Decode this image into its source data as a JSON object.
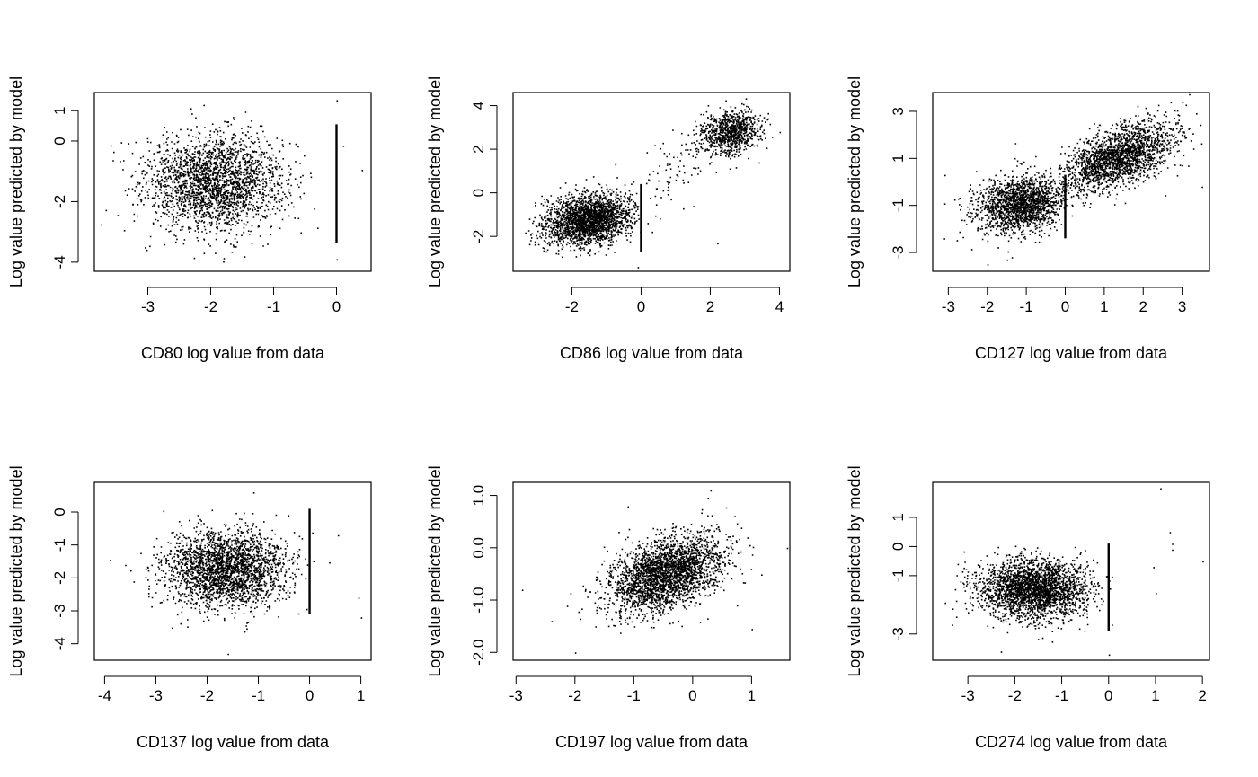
{
  "chart_data": [
    {
      "type": "scatter",
      "xlabel": "CD80 log value from data",
      "ylabel": "Log value predicted by model",
      "xlim": [
        -3.85,
        0.55
      ],
      "ylim": [
        -4.3,
        1.6
      ],
      "xticks": [
        -3,
        -2,
        -1,
        0
      ],
      "yticks": [
        -4,
        -2,
        0,
        1
      ],
      "grid": false,
      "clusters": [
        {
          "cx": -1.95,
          "cy": -1.35,
          "sx": 0.55,
          "sy": 0.78,
          "n": 2400,
          "rho": 0.0,
          "range_x": [
            -3.7,
            -0.3
          ]
        }
      ],
      "vertical_line": {
        "x": 0.0,
        "y_from": -3.35,
        "y_to": 0.55
      },
      "outlier_points": [
        [
          0.0,
          1.35
        ],
        [
          0.0,
          -3.9
        ],
        [
          0.1,
          -0.15
        ],
        [
          0.4,
          -0.95
        ],
        [
          -3.55,
          -0.35
        ],
        [
          -3.75,
          -2.75
        ]
      ]
    },
    {
      "type": "scatter",
      "xlabel": "CD86 log value from data",
      "ylabel": "Log value predicted by model",
      "xlim": [
        -3.7,
        4.3
      ],
      "ylim": [
        -3.6,
        4.6
      ],
      "xticks": [
        -2,
        0,
        2,
        4
      ],
      "yticks": [
        -2,
        0,
        2,
        4
      ],
      "grid": false,
      "clusters": [
        {
          "cx": -1.55,
          "cy": -1.2,
          "sx": 0.62,
          "sy": 0.58,
          "n": 2300,
          "rho": 0.2,
          "range_x": [
            -3.4,
            0.0
          ]
        },
        {
          "cx": 2.55,
          "cy": 2.8,
          "sx": 0.42,
          "sy": 0.52,
          "n": 900,
          "rho": 0.15,
          "range_x": [
            1.0,
            3.8
          ]
        },
        {
          "cx": 0.8,
          "cy": 1.0,
          "sx": 0.6,
          "sy": 1.0,
          "n": 90,
          "rho": 0.5,
          "range_x": [
            0.0,
            2.0
          ]
        }
      ],
      "vertical_line": {
        "x": 0.0,
        "y_from": -2.7,
        "y_to": 0.4
      },
      "outlier_points": [
        [
          2.2,
          -2.3
        ],
        [
          0.9,
          2.9
        ],
        [
          -0.1,
          -3.4
        ],
        [
          4.0,
          2.8
        ],
        [
          1.5,
          -0.6
        ]
      ]
    },
    {
      "type": "scatter",
      "xlabel": "CD127 log value from data",
      "ylabel": "Log value predicted by model",
      "xlim": [
        -3.4,
        3.7
      ],
      "ylim": [
        -3.8,
        3.8
      ],
      "xticks": [
        -3,
        -2,
        -1,
        0,
        1,
        2,
        3
      ],
      "yticks": [
        -3,
        -1,
        1,
        3
      ],
      "grid": false,
      "clusters": [
        {
          "cx": -1.15,
          "cy": -0.95,
          "sx": 0.58,
          "sy": 0.6,
          "n": 1800,
          "rho": 0.15,
          "range_x": [
            -3.2,
            0.0
          ]
        },
        {
          "cx": 1.3,
          "cy": 1.05,
          "sx": 0.72,
          "sy": 0.75,
          "n": 2100,
          "rho": 0.55,
          "range_x": [
            -0.2,
            3.5
          ]
        }
      ],
      "vertical_line": {
        "x": 0.0,
        "y_from": -2.4,
        "y_to": 0.3
      },
      "outlier_points": [
        [
          2.7,
          3.4
        ],
        [
          3.0,
          3.4
        ],
        [
          -3.1,
          0.3
        ],
        [
          3.5,
          -0.2
        ],
        [
          -1.5,
          -3.3
        ],
        [
          -2.0,
          -3.5
        ]
      ]
    },
    {
      "type": "scatter",
      "xlabel": "CD137 log value from data",
      "ylabel": "Log value predicted by model",
      "xlim": [
        -4.2,
        1.2
      ],
      "ylim": [
        -4.5,
        0.9
      ],
      "xticks": [
        -4,
        -3,
        -2,
        -1,
        0,
        1
      ],
      "yticks": [
        -4,
        -3,
        -2,
        -1,
        0
      ],
      "grid": false,
      "clusters": [
        {
          "cx": -1.65,
          "cy": -1.7,
          "sx": 0.58,
          "sy": 0.58,
          "n": 2500,
          "rho": 0.0,
          "range_x": [
            -3.5,
            0.55
          ]
        }
      ],
      "vertical_line": {
        "x": 0.0,
        "y_from": -3.1,
        "y_to": 0.1
      },
      "outlier_points": [
        [
          -3.9,
          -1.45
        ],
        [
          -3.6,
          -1.6
        ],
        [
          1.0,
          -3.2
        ],
        [
          0.95,
          -2.6
        ],
        [
          0.55,
          -0.7
        ],
        [
          -1.1,
          0.6
        ],
        [
          -1.6,
          -4.3
        ]
      ]
    },
    {
      "type": "scatter",
      "xlabel": "CD197 log value from data",
      "ylabel": "Log value predicted by model",
      "xlim": [
        -3.05,
        1.65
      ],
      "ylim": [
        -2.15,
        1.25
      ],
      "xticks": [
        -3,
        -2,
        -1,
        0,
        1
      ],
      "yticks": [
        -2.0,
        -1.0,
        0.0,
        1.0
      ],
      "ytick_labels": [
        "-2.0",
        "-1.0",
        "0.0",
        "1.0"
      ],
      "grid": false,
      "clusters": [
        {
          "cx": -0.45,
          "cy": -0.48,
          "sx": 0.48,
          "sy": 0.36,
          "n": 2700,
          "rho": 0.4,
          "range_x": [
            -2.6,
            1.4
          ]
        }
      ],
      "vertical_line": null,
      "outlier_points": [
        [
          -2.0,
          -2.0
        ],
        [
          1.6,
          0.0
        ],
        [
          1.0,
          -1.55
        ],
        [
          -2.4,
          -1.4
        ],
        [
          0.3,
          1.1
        ],
        [
          -2.9,
          -0.8
        ]
      ]
    },
    {
      "type": "scatter",
      "xlabel": "CD274 log value from data",
      "ylabel": "Log value predicted by model",
      "xlim": [
        -3.75,
        2.15
      ],
      "ylim": [
        -3.9,
        2.2
      ],
      "xticks": [
        -3,
        -2,
        -1,
        0,
        1,
        2
      ],
      "yticks": [
        -3,
        -1,
        0,
        1
      ],
      "grid": false,
      "clusters": [
        {
          "cx": -1.6,
          "cy": -1.45,
          "sx": 0.58,
          "sy": 0.5,
          "n": 2600,
          "rho": 0.0,
          "range_x": [
            -3.5,
            0.2
          ]
        }
      ],
      "vertical_line": {
        "x": 0.0,
        "y_from": -2.9,
        "y_to": 0.1
      },
      "outlier_points": [
        [
          1.1,
          2.0
        ],
        [
          1.3,
          0.5
        ],
        [
          1.35,
          0.1
        ],
        [
          1.35,
          -0.1
        ],
        [
          2.0,
          -0.5
        ],
        [
          0.95,
          -0.7
        ],
        [
          1.0,
          -1.6
        ],
        [
          -2.3,
          -3.6
        ],
        [
          0.0,
          -3.7
        ]
      ]
    }
  ]
}
